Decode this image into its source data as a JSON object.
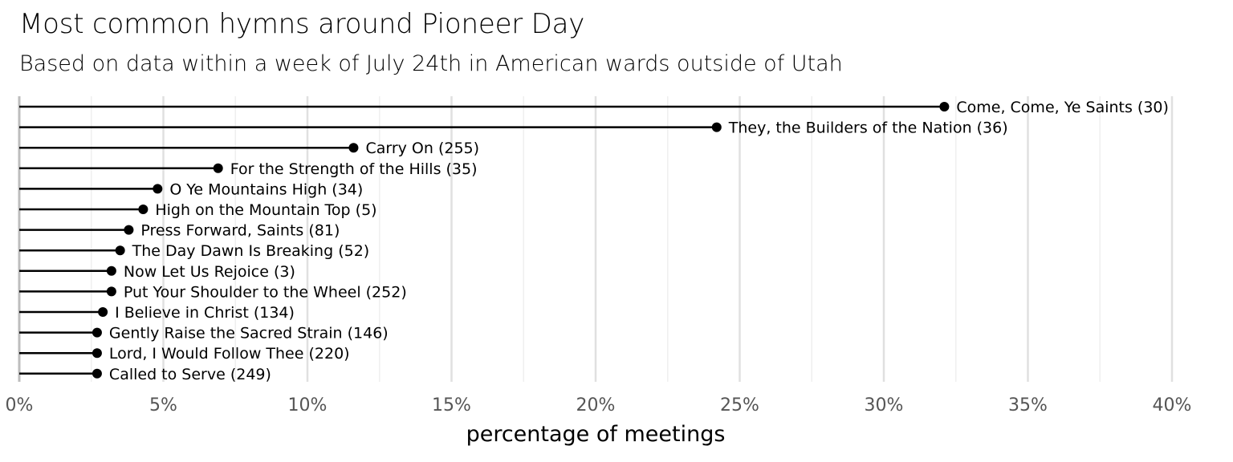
{
  "chart_data": {
    "type": "lollipop",
    "orientation": "horizontal",
    "title": "Most common hymns around Pioneer Day",
    "subtitle": "Based on data within a week of July 24th in American wards outside of Utah",
    "xlabel": "percentage of meetings",
    "ylabel": "",
    "xlim": [
      0,
      40
    ],
    "x_ticks": [
      0,
      5,
      10,
      15,
      20,
      25,
      30,
      35,
      40
    ],
    "x_tick_labels": [
      "0%",
      "5%",
      "10%",
      "15%",
      "20%",
      "25%",
      "30%",
      "35%",
      "40%"
    ],
    "grid": true,
    "legend": "none",
    "series": [
      {
        "points": [
          {
            "label": "Come, Come, Ye Saints (30)",
            "value": 32.1
          },
          {
            "label": "They, the Builders of the Nation (36)",
            "value": 24.2
          },
          {
            "label": "Carry On (255)",
            "value": 11.6
          },
          {
            "label": "For the Strength of the Hills (35)",
            "value": 6.9
          },
          {
            "label": "O Ye Mountains High (34)",
            "value": 4.8
          },
          {
            "label": "High on the Mountain Top (5)",
            "value": 4.3
          },
          {
            "label": "Press Forward, Saints (81)",
            "value": 3.8
          },
          {
            "label": "The Day Dawn Is Breaking (52)",
            "value": 3.5
          },
          {
            "label": "Now Let Us Rejoice (3)",
            "value": 3.2
          },
          {
            "label": "Put Your Shoulder to the Wheel (252)",
            "value": 3.2
          },
          {
            "label": "I Believe in Christ (134)",
            "value": 2.9
          },
          {
            "label": "Gently Raise the Sacred Strain (146)",
            "value": 2.7
          },
          {
            "label": "Lord, I Would Follow Thee (220)",
            "value": 2.7
          },
          {
            "label": "Called to Serve (249)",
            "value": 2.7
          }
        ]
      }
    ],
    "colors": {
      "mark": "#000000",
      "grid_major": "#e0e0e0",
      "grid_minor": "#efefef",
      "axis_line": "#bdbdbd",
      "tick_text": "#555555"
    }
  }
}
